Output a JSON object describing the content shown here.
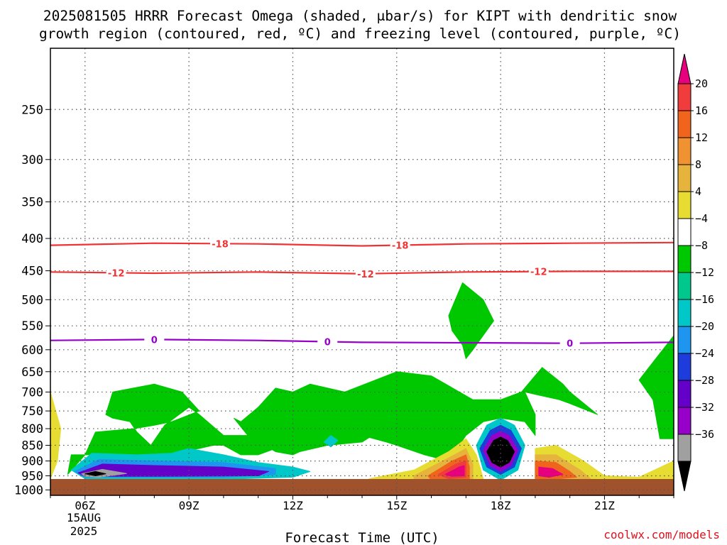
{
  "chart_data": {
    "type": "heatmap",
    "title_line1": "2025081505 HRRR Forecast Omega (shaded, μbar/s) for KIPT with dendritic snow",
    "title_line2": "growth region (contoured, red, ºC) and freezing level (contoured, purple, ºC)",
    "xlabel": "Forecast Time (UTC)",
    "x_ticks": [
      {
        "label": "06Z",
        "hour": 6
      },
      {
        "label": "09Z",
        "hour": 9
      },
      {
        "label": "12Z",
        "hour": 12
      },
      {
        "label": "15Z",
        "hour": 15
      },
      {
        "label": "18Z",
        "hour": 18
      },
      {
        "label": "21Z",
        "hour": 21
      }
    ],
    "x_date_lines": [
      "15AUG",
      "2025"
    ],
    "xlim_hours": [
      5,
      23
    ],
    "y_ticks": [
      250,
      300,
      350,
      400,
      450,
      500,
      550,
      600,
      650,
      700,
      750,
      800,
      850,
      900,
      950,
      1000
    ],
    "ylim_hpa": [
      200,
      1020
    ],
    "y_scale": "log",
    "grid": true,
    "colorbar": {
      "labels": [
        "20",
        "16",
        "12",
        "8",
        "4",
        "−4",
        "−8",
        "−12",
        "−16",
        "−20",
        "−24",
        "−28",
        "−32",
        "−36"
      ],
      "colors": [
        "#e6007e",
        "#f03c3c",
        "#f0641e",
        "#f09132",
        "#e6b43c",
        "#e6dc32",
        "#ffffff",
        "#00c800",
        "#00c88c",
        "#00c8c8",
        "#1e96f0",
        "#1e3cdc",
        "#6400c8",
        "#9600c8",
        "#a0a0a0",
        "#000000"
      ]
    },
    "contours": [
      {
        "name": "-18",
        "color": "#f03232",
        "points": [
          [
            5,
            410
          ],
          [
            8,
            407
          ],
          [
            11,
            408
          ],
          [
            14,
            411
          ],
          [
            17,
            408
          ],
          [
            20,
            407
          ],
          [
            23,
            406
          ]
        ],
        "label_hours": [
          9.9,
          15.1
        ]
      },
      {
        "name": "-12",
        "color": "#f03232",
        "points": [
          [
            5,
            452
          ],
          [
            8,
            454
          ],
          [
            11,
            452
          ],
          [
            14,
            455
          ],
          [
            17,
            452
          ],
          [
            20,
            451
          ],
          [
            23,
            451
          ]
        ],
        "label_hours": [
          6.9,
          14.1,
          19.1
        ]
      },
      {
        "name": "0",
        "color": "#9600c8",
        "points": [
          [
            5,
            580
          ],
          [
            8,
            578
          ],
          [
            11,
            580
          ],
          [
            14,
            584
          ],
          [
            17,
            585
          ],
          [
            20,
            586
          ],
          [
            23,
            584
          ]
        ],
        "label_hours": [
          8.0,
          13.0,
          20.0
        ]
      }
    ],
    "shaded_regions": [
      {
        "color": "#00c800",
        "points": [
          [
            5.5,
            945
          ],
          [
            6.0,
            880
          ],
          [
            7.5,
            880
          ],
          [
            8.0,
            890
          ],
          [
            8.7,
            870
          ],
          [
            9.3,
            860
          ],
          [
            9.7,
            850
          ],
          [
            10.0,
            850
          ],
          [
            10.5,
            880
          ],
          [
            11.0,
            880
          ],
          [
            11.5,
            860
          ],
          [
            12.5,
            840
          ],
          [
            13.0,
            800
          ],
          [
            14.0,
            820
          ],
          [
            14.7,
            840
          ],
          [
            15.0,
            850
          ],
          [
            15.8,
            880
          ],
          [
            16.5,
            900
          ],
          [
            17.0,
            820
          ],
          [
            17.5,
            780
          ],
          [
            18.0,
            770
          ],
          [
            18.7,
            780
          ],
          [
            19.0,
            820
          ],
          [
            19.0,
            760
          ],
          [
            18.7,
            700
          ],
          [
            19.7,
            720
          ],
          [
            20.0,
            730
          ],
          [
            20.8,
            760
          ],
          [
            20.0,
            700
          ],
          [
            19.8,
            680
          ],
          [
            19.2,
            640
          ],
          [
            18.6,
            700
          ],
          [
            18.0,
            720
          ],
          [
            17.2,
            720
          ],
          [
            16.0,
            660
          ],
          [
            15.0,
            650
          ],
          [
            13.5,
            700
          ],
          [
            12.5,
            680
          ],
          [
            12.0,
            700
          ],
          [
            11.5,
            690
          ],
          [
            11.0,
            740
          ],
          [
            10.5,
            780
          ],
          [
            10.3,
            770
          ],
          [
            10.7,
            820
          ],
          [
            10.0,
            820
          ],
          [
            9.3,
            760
          ],
          [
            9.0,
            740
          ],
          [
            8.3,
            790
          ],
          [
            7.9,
            850
          ],
          [
            7.5,
            810
          ],
          [
            7.3,
            780
          ],
          [
            6.8,
            770
          ],
          [
            6.6,
            760
          ],
          [
            6.8,
            700
          ],
          [
            8.0,
            680
          ],
          [
            8.8,
            700
          ],
          [
            9.3,
            750
          ],
          [
            8.5,
            780
          ],
          [
            8.0,
            790
          ],
          [
            7.4,
            800
          ],
          [
            6.3,
            810
          ],
          [
            6.0,
            880
          ],
          [
            5.6,
            880
          ]
        ]
      },
      {
        "color": "#00c800",
        "points": [
          [
            10.8,
            830
          ],
          [
            11.8,
            760
          ],
          [
            12.5,
            720
          ],
          [
            13.2,
            700
          ],
          [
            14.0,
            710
          ],
          [
            14.5,
            760
          ],
          [
            14.6,
            800
          ],
          [
            14.0,
            840
          ],
          [
            13.0,
            850
          ],
          [
            12.2,
            870
          ],
          [
            12.0,
            880
          ],
          [
            11.5,
            870
          ],
          [
            11.2,
            850
          ]
        ]
      },
      {
        "color": "#00c800",
        "points": [
          [
            16.5,
            530
          ],
          [
            16.9,
            470
          ],
          [
            17.5,
            500
          ],
          [
            17.8,
            540
          ],
          [
            17.2,
            600
          ],
          [
            17.0,
            620
          ],
          [
            16.9,
            590
          ],
          [
            16.6,
            560
          ]
        ]
      },
      {
        "color": "#00c800",
        "points": [
          [
            22.0,
            670
          ],
          [
            23.0,
            570
          ],
          [
            23.0,
            830
          ],
          [
            22.6,
            830
          ],
          [
            22.4,
            720
          ]
        ]
      },
      {
        "color": "#00c8c8",
        "points": [
          [
            5.6,
            930
          ],
          [
            6.2,
            875
          ],
          [
            7.5,
            880
          ],
          [
            8.5,
            875
          ],
          [
            9.0,
            860
          ],
          [
            10.0,
            880
          ],
          [
            11.0,
            905
          ],
          [
            12.0,
            920
          ],
          [
            12.5,
            935
          ],
          [
            12.0,
            955
          ],
          [
            10.5,
            960
          ],
          [
            8.0,
            960
          ],
          [
            6.0,
            960
          ]
        ]
      },
      {
        "color": "#1e96f0",
        "points": [
          [
            5.7,
            935
          ],
          [
            6.4,
            895
          ],
          [
            8.0,
            900
          ],
          [
            10.0,
            905
          ],
          [
            11.5,
            925
          ],
          [
            11.5,
            945
          ],
          [
            10.0,
            955
          ],
          [
            7.0,
            955
          ],
          [
            6.0,
            955
          ]
        ]
      },
      {
        "color": "#6400c8",
        "points": [
          [
            5.8,
            940
          ],
          [
            6.5,
            910
          ],
          [
            8.0,
            915
          ],
          [
            10.0,
            920
          ],
          [
            11.3,
            935
          ],
          [
            11.0,
            950
          ],
          [
            8.0,
            952
          ],
          [
            6.0,
            952
          ]
        ]
      },
      {
        "color": "#a0a0a0",
        "points": [
          [
            5.9,
            943
          ],
          [
            6.5,
            928
          ],
          [
            7.2,
            942
          ],
          [
            6.4,
            955
          ],
          [
            6.0,
            952
          ]
        ]
      },
      {
        "color": "#000000",
        "points": [
          [
            6.0,
            943
          ],
          [
            6.3,
            935
          ],
          [
            6.6,
            943
          ],
          [
            6.3,
            950
          ]
        ]
      },
      {
        "color": "#e6dc32",
        "points": [
          [
            5.0,
            700
          ],
          [
            5.3,
            800
          ],
          [
            5.2,
            900
          ],
          [
            5.0,
            960
          ]
        ]
      },
      {
        "color": "#e6dc32",
        "points": [
          [
            14.2,
            960
          ],
          [
            15.5,
            930
          ],
          [
            16.5,
            870
          ],
          [
            17.0,
            830
          ],
          [
            17.3,
            880
          ],
          [
            17.5,
            960
          ],
          [
            17.0,
            975
          ],
          [
            16.0,
            975
          ],
          [
            15.0,
            980
          ],
          [
            14.5,
            985
          ]
        ]
      },
      {
        "color": "#e6dc32",
        "points": [
          [
            19.0,
            860
          ],
          [
            19.6,
            850
          ],
          [
            20.4,
            900
          ],
          [
            21.0,
            950
          ],
          [
            22.0,
            955
          ],
          [
            23.0,
            900
          ],
          [
            23.0,
            985
          ],
          [
            22.0,
            985
          ],
          [
            20.5,
            980
          ],
          [
            19.6,
            978
          ],
          [
            19.0,
            970
          ]
        ]
      },
      {
        "color": "#e6b43c",
        "points": [
          [
            15.5,
            950
          ],
          [
            16.5,
            890
          ],
          [
            17.0,
            860
          ],
          [
            17.2,
            910
          ],
          [
            17.2,
            960
          ],
          [
            16.5,
            970
          ],
          [
            15.5,
            970
          ]
        ]
      },
      {
        "color": "#e6b43c",
        "points": [
          [
            19.0,
            880
          ],
          [
            19.6,
            880
          ],
          [
            20.3,
            930
          ],
          [
            20.6,
            960
          ],
          [
            19.6,
            970
          ],
          [
            19.0,
            965
          ]
        ]
      },
      {
        "color": "#f0641e",
        "points": [
          [
            15.9,
            950
          ],
          [
            16.6,
            900
          ],
          [
            17.0,
            880
          ],
          [
            17.1,
            920
          ],
          [
            17.1,
            960
          ],
          [
            16.5,
            965
          ],
          [
            16.0,
            965
          ]
        ]
      },
      {
        "color": "#f03c3c",
        "points": [
          [
            16.2,
            945
          ],
          [
            16.7,
            910
          ],
          [
            17.0,
            900
          ],
          [
            17.0,
            955
          ],
          [
            16.5,
            960
          ]
        ]
      },
      {
        "color": "#e6007e",
        "points": [
          [
            16.4,
            945
          ],
          [
            16.8,
            920
          ],
          [
            16.95,
            915
          ],
          [
            16.95,
            950
          ],
          [
            16.6,
            952
          ]
        ]
      },
      {
        "color": "#f0641e",
        "points": [
          [
            19.0,
            900
          ],
          [
            19.6,
            905
          ],
          [
            20.0,
            935
          ],
          [
            20.2,
            955
          ],
          [
            19.5,
            962
          ],
          [
            19.0,
            960
          ]
        ]
      },
      {
        "color": "#e6007e",
        "points": [
          [
            19.1,
            920
          ],
          [
            19.5,
            925
          ],
          [
            19.8,
            945
          ],
          [
            19.4,
            955
          ],
          [
            19.1,
            950
          ]
        ]
      },
      {
        "color": "#00c8c8",
        "points": [
          [
            17.3,
            850
          ],
          [
            17.6,
            790
          ],
          [
            18.0,
            770
          ],
          [
            18.4,
            790
          ],
          [
            18.7,
            850
          ],
          [
            18.5,
            930
          ],
          [
            18.0,
            965
          ],
          [
            17.5,
            930
          ]
        ]
      },
      {
        "color": "#1e3cdc",
        "points": [
          [
            17.4,
            860
          ],
          [
            17.7,
            805
          ],
          [
            18.0,
            790
          ],
          [
            18.3,
            805
          ],
          [
            18.6,
            860
          ],
          [
            18.4,
            920
          ],
          [
            18.0,
            945
          ],
          [
            17.6,
            920
          ]
        ]
      },
      {
        "color": "#9600c8",
        "points": [
          [
            17.5,
            865
          ],
          [
            17.75,
            820
          ],
          [
            18.0,
            808
          ],
          [
            18.25,
            820
          ],
          [
            18.5,
            865
          ],
          [
            18.3,
            915
          ],
          [
            18.0,
            935
          ],
          [
            17.7,
            915
          ]
        ]
      },
      {
        "color": "#000000",
        "points": [
          [
            17.6,
            870
          ],
          [
            17.8,
            835
          ],
          [
            18.0,
            825
          ],
          [
            18.2,
            835
          ],
          [
            18.4,
            870
          ],
          [
            18.25,
            905
          ],
          [
            18.0,
            920
          ],
          [
            17.75,
            905
          ]
        ]
      },
      {
        "color": "#00c8c8",
        "points": [
          [
            12.9,
            840
          ],
          [
            13.1,
            820
          ],
          [
            13.3,
            835
          ],
          [
            13.1,
            855
          ]
        ]
      }
    ]
  },
  "footer": {
    "credit": "coolwx.com/models"
  }
}
